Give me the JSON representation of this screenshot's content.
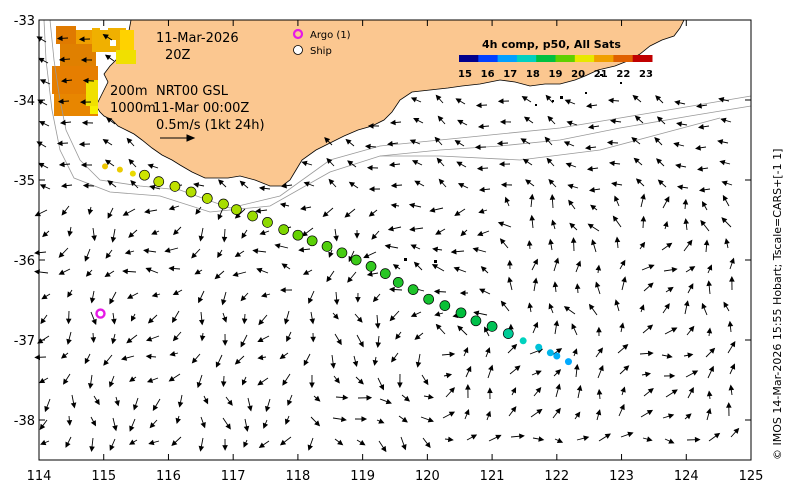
{
  "map": {
    "x_axis": {
      "min": 114,
      "max": 125,
      "ticks": [
        "114",
        "115",
        "116",
        "117",
        "118",
        "119",
        "120",
        "121",
        "122",
        "123",
        "124",
        "125"
      ]
    },
    "y_axis": {
      "min": -38.5,
      "max": -33,
      "ticks": [
        "-33",
        "-34",
        "-35",
        "-36",
        "-37",
        "-38"
      ]
    }
  },
  "annotations": {
    "date": "11-Mar-2026",
    "time": "20Z",
    "contour_200": "200m",
    "contour_1000": "1000m",
    "product": "NRT00 GSL",
    "valid": "11-Mar 00:00Z",
    "scale": "0.5m/s (1kt 24h)"
  },
  "legend": {
    "argo": "Argo (1)",
    "ship": "Ship",
    "argo_color": "#e619e6"
  },
  "colorbar": {
    "title": "4h comp, p50, All Sats",
    "labels": [
      "15",
      "16",
      "17",
      "18",
      "19",
      "20",
      "21",
      "22",
      "23"
    ],
    "colors": [
      "#00008c",
      "#0040ff",
      "#00a0ff",
      "#00d0c0",
      "#00c040",
      "#60d000",
      "#e8e800",
      "#f0a000",
      "#e06000",
      "#c00000"
    ]
  },
  "credit": "© IMOS 14-Mar-2026 15:55 Hobart; Tscale=CARS+[-1 1]",
  "colors": {
    "land": "#fbc790",
    "plot_bg": "#ffffff",
    "contour": "#999999"
  },
  "argo_floats": [
    {
      "lon": 114.95,
      "lat": -36.67
    }
  ],
  "ship_track": [
    {
      "lon": 115.02,
      "lat": -34.83,
      "t": 21.5
    },
    {
      "lon": 115.25,
      "lat": -34.87,
      "t": 21.4
    },
    {
      "lon": 115.45,
      "lat": -34.92,
      "t": 21.2
    },
    {
      "lon": 115.63,
      "lat": -34.94,
      "t": 20.8
    },
    {
      "lon": 115.85,
      "lat": -35.02,
      "t": 20.7
    },
    {
      "lon": 116.1,
      "lat": -35.08,
      "t": 20.7
    },
    {
      "lon": 116.35,
      "lat": -35.15,
      "t": 20.6
    },
    {
      "lon": 116.6,
      "lat": -35.23,
      "t": 20.6
    },
    {
      "lon": 116.85,
      "lat": -35.3,
      "t": 20.5
    },
    {
      "lon": 117.05,
      "lat": -35.37,
      "t": 20.5
    },
    {
      "lon": 117.3,
      "lat": -35.45,
      "t": 20.4
    },
    {
      "lon": 117.53,
      "lat": -35.53,
      "t": 20.3
    },
    {
      "lon": 117.78,
      "lat": -35.62,
      "t": 20.2
    },
    {
      "lon": 118.0,
      "lat": -35.69,
      "t": 20.0
    },
    {
      "lon": 118.22,
      "lat": -35.76,
      "t": 19.9
    },
    {
      "lon": 118.45,
      "lat": -35.83,
      "t": 19.8
    },
    {
      "lon": 118.68,
      "lat": -35.91,
      "t": 19.7
    },
    {
      "lon": 118.9,
      "lat": -36.0,
      "t": 19.6
    },
    {
      "lon": 119.13,
      "lat": -36.08,
      "t": 19.5
    },
    {
      "lon": 119.35,
      "lat": -36.17,
      "t": 19.4
    },
    {
      "lon": 119.55,
      "lat": -36.28,
      "t": 19.3
    },
    {
      "lon": 119.78,
      "lat": -36.37,
      "t": 19.3
    },
    {
      "lon": 120.02,
      "lat": -36.49,
      "t": 19.2
    },
    {
      "lon": 120.27,
      "lat": -36.57,
      "t": 19.1
    },
    {
      "lon": 120.52,
      "lat": -36.66,
      "t": 19.0
    },
    {
      "lon": 120.75,
      "lat": -36.76,
      "t": 18.9
    },
    {
      "lon": 121.0,
      "lat": -36.83,
      "t": 18.8
    },
    {
      "lon": 121.25,
      "lat": -36.92,
      "t": 18.3
    },
    {
      "lon": 121.48,
      "lat": -37.01,
      "t": 18.0
    },
    {
      "lon": 121.72,
      "lat": -37.09,
      "t": 17.6
    },
    {
      "lon": 121.9,
      "lat": -37.16,
      "t": 17.3
    },
    {
      "lon": 122.0,
      "lat": -37.2,
      "t": 17.1
    },
    {
      "lon": 122.18,
      "lat": -37.27,
      "t": 17.0
    }
  ]
}
